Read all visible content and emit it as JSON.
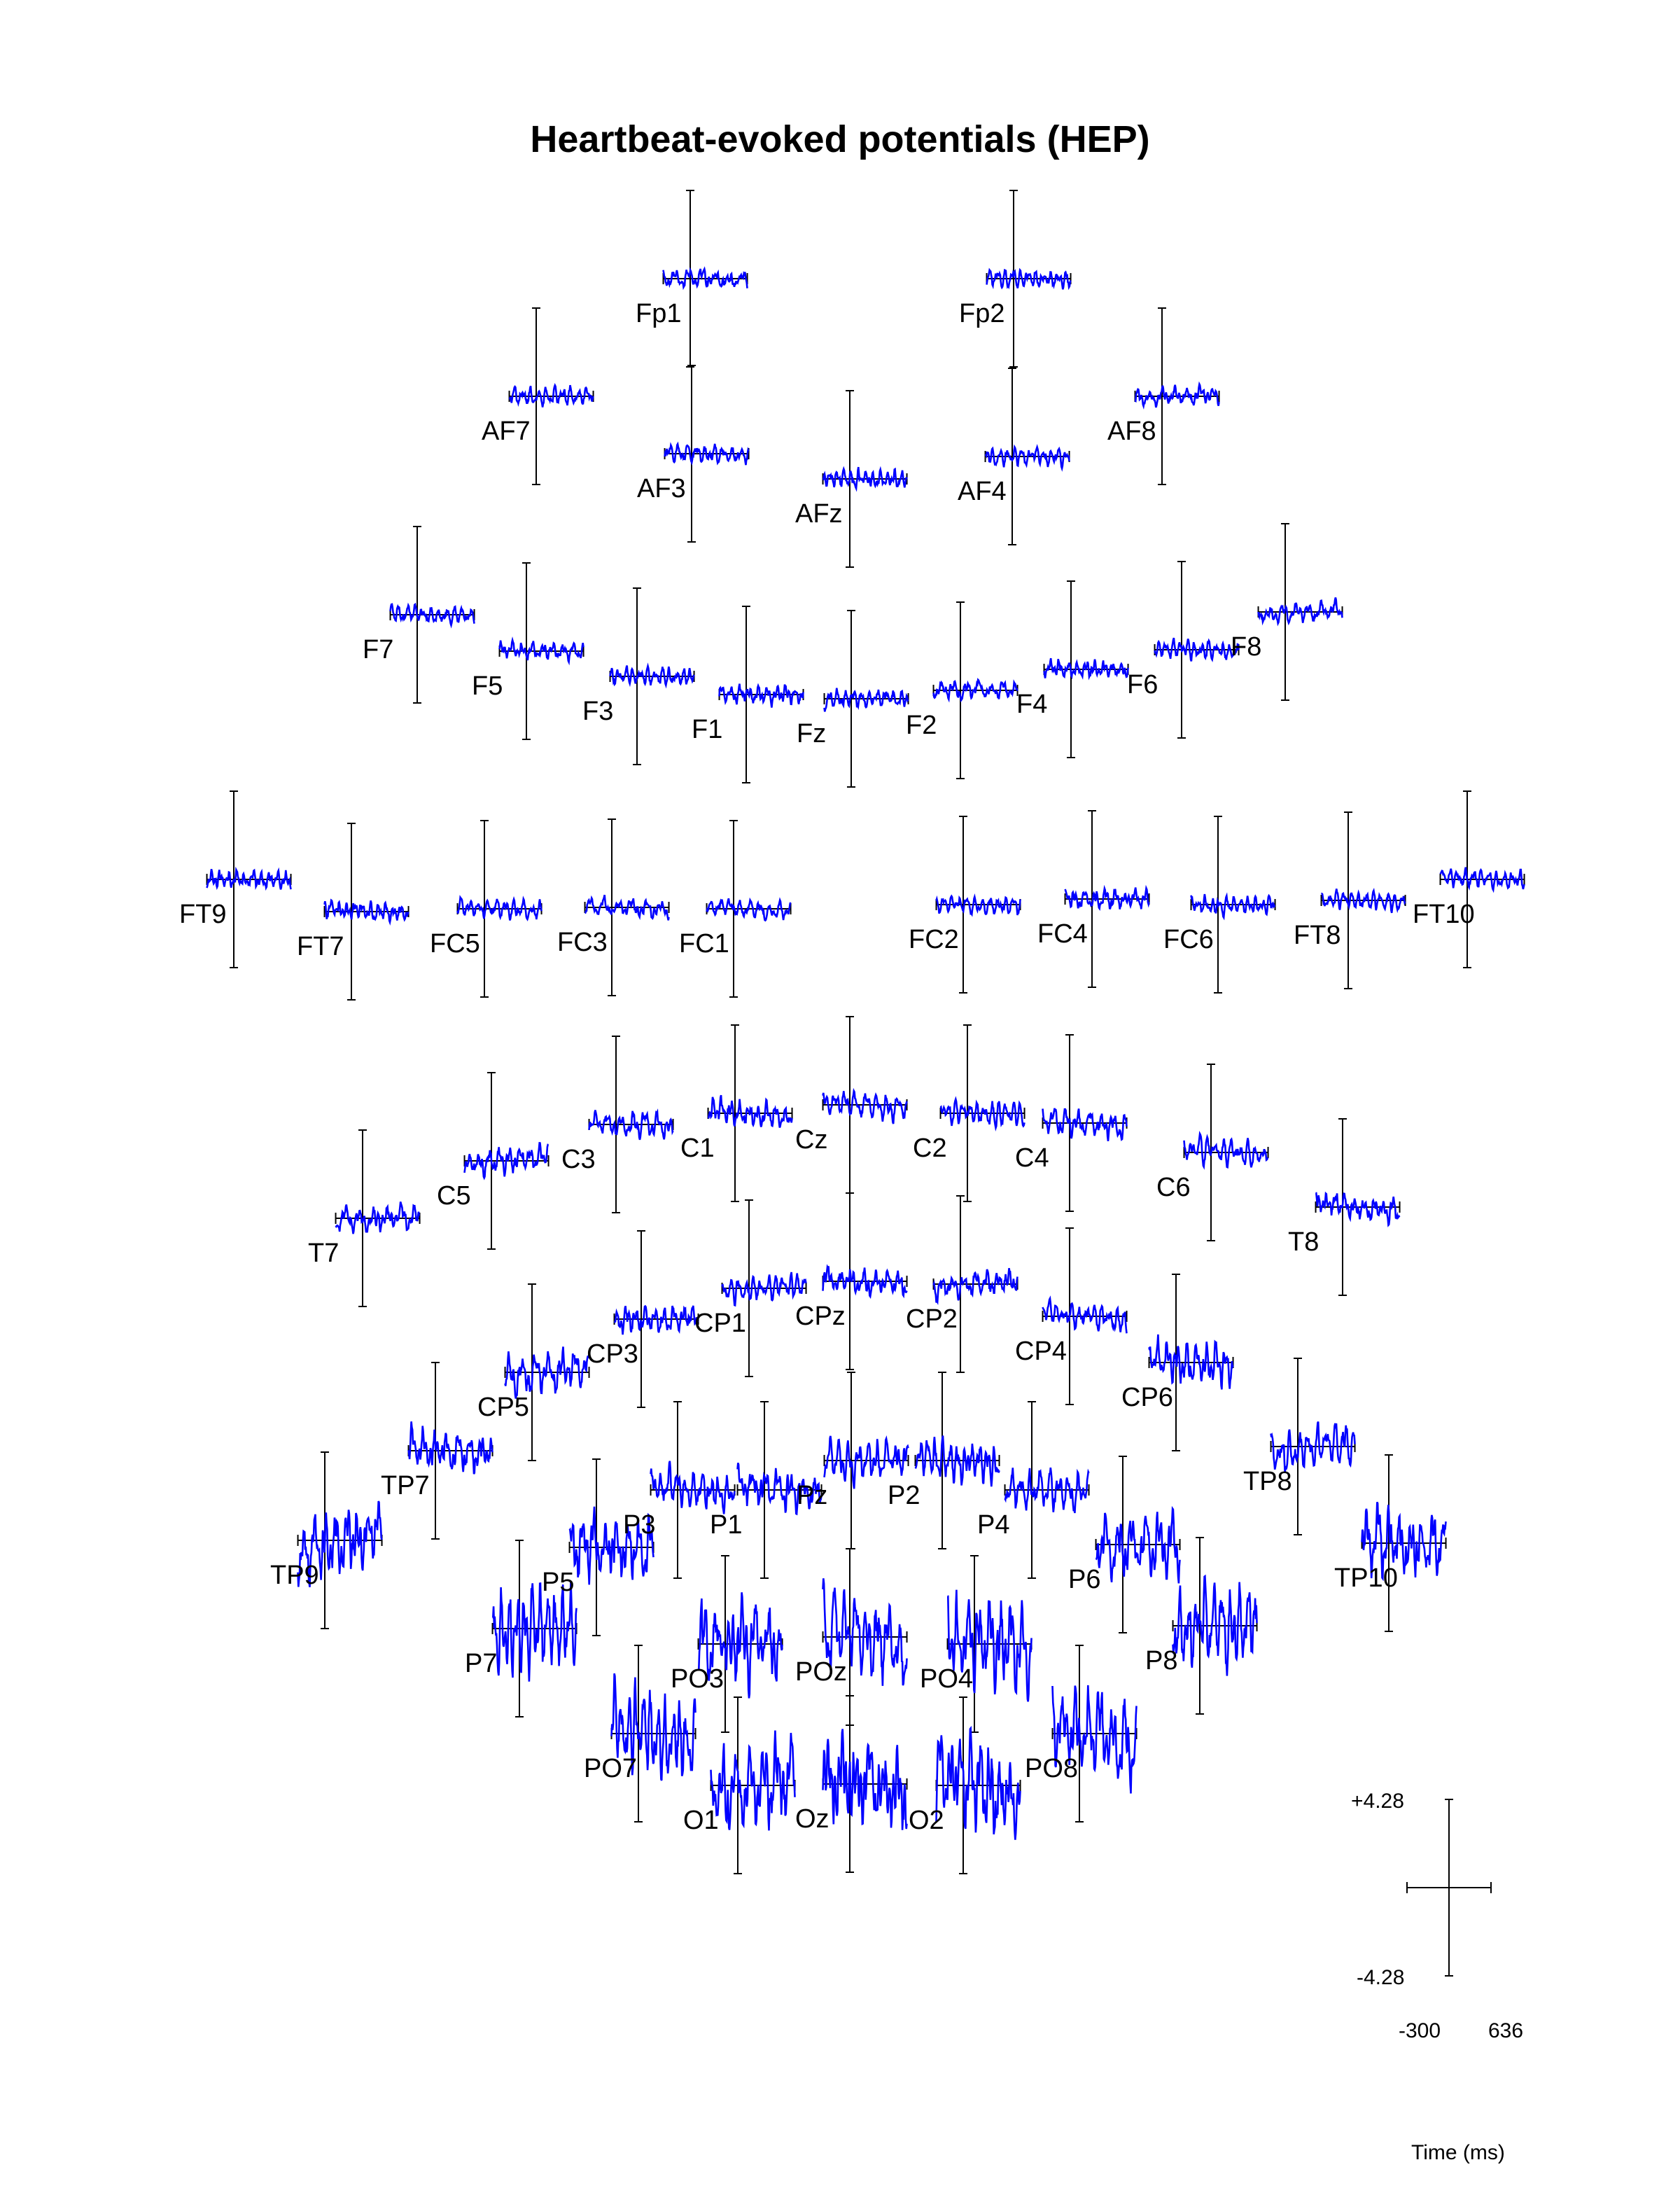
{
  "chart_data": {
    "type": "line",
    "title": "Heartbeat-evoked potentials (HEP)",
    "xlabel": "Time (ms)",
    "xlim": [
      -300,
      636
    ],
    "ylim": [
      -4.28,
      4.28
    ],
    "scale_labels": {
      "ymax": "+4.28",
      "ymin": "-4.28",
      "xmin": "-300",
      "xmax": "636"
    },
    "series_color": "#0000ff",
    "channels": [
      "Fp1",
      "Fp2",
      "AF7",
      "AF3",
      "AFz",
      "AF4",
      "AF8",
      "F7",
      "F5",
      "F3",
      "F1",
      "Fz",
      "F2",
      "F4",
      "F6",
      "F8",
      "FT9",
      "FT7",
      "FC5",
      "FC3",
      "FC1",
      "FC2",
      "FC4",
      "FC6",
      "FT8",
      "FT10",
      "T7",
      "C5",
      "C3",
      "C1",
      "Cz",
      "C2",
      "C4",
      "C6",
      "T8",
      "CP5",
      "CP3",
      "CP1",
      "CPz",
      "CP2",
      "CP4",
      "CP6",
      "TP7",
      "TP8",
      "TP9",
      "TP10",
      "P7",
      "P5",
      "P3",
      "P1",
      "Pz",
      "P2",
      "P4",
      "P6",
      "P8",
      "PO7",
      "PO3",
      "POz",
      "PO4",
      "PO8",
      "O1",
      "Oz",
      "O2"
    ]
  }
}
